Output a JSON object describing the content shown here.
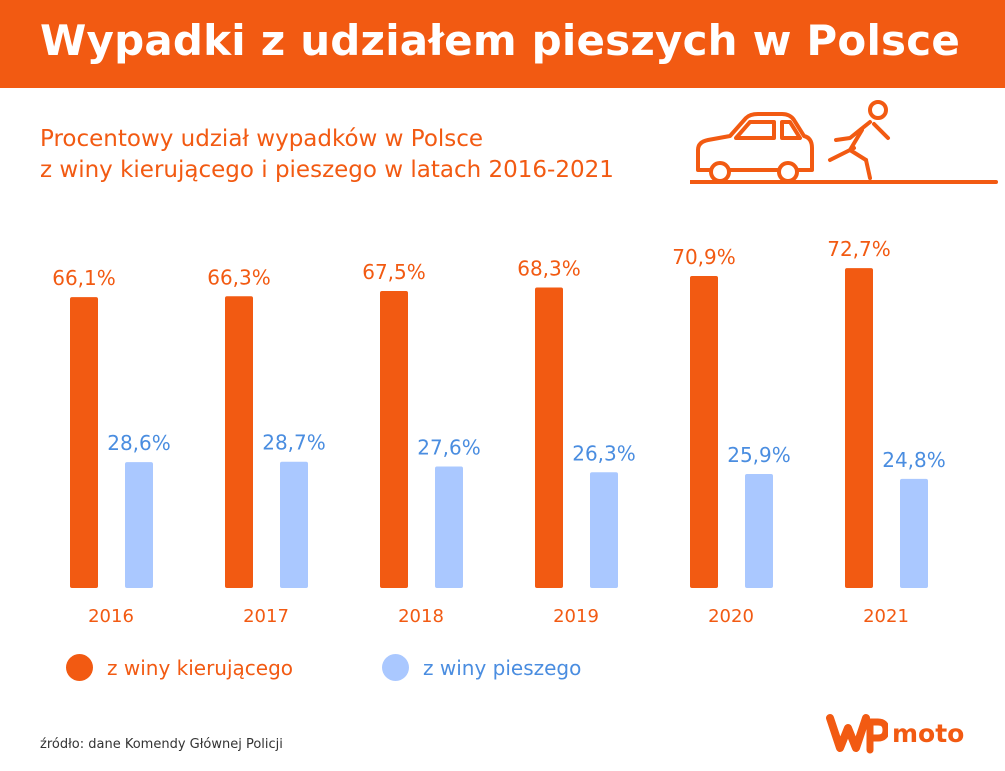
{
  "header": {
    "title": "Wypadki z udziałem pieszych w Polsce"
  },
  "subtitle": {
    "line1": "Procentowy udział wypadków w Polsce",
    "line2": "z winy kierującego i pieszego w latach 2016-2021"
  },
  "colors": {
    "brand": "#f25a12",
    "driver": "#f25a12",
    "pedestrian": "#aac8ff",
    "pedestrian_text": "#4a8de0"
  },
  "chart_data": {
    "type": "bar",
    "title": "Procentowy udział wypadków w Polsce z winy kierującego i pieszego w latach 2016-2021",
    "categories": [
      "2016",
      "2017",
      "2018",
      "2019",
      "2020",
      "2021"
    ],
    "series": [
      {
        "name": "z winy kierującego",
        "values": [
          66.1,
          66.3,
          67.5,
          68.3,
          70.9,
          72.7
        ],
        "labels": [
          "66,1%",
          "66,3%",
          "67,5%",
          "68,3%",
          "70,9%",
          "72,7%"
        ]
      },
      {
        "name": "z winy pieszego",
        "values": [
          28.6,
          28.7,
          27.6,
          26.3,
          25.9,
          24.8
        ],
        "labels": [
          "28,6%",
          "28,7%",
          "27,6%",
          "26,3%",
          "25,9%",
          "24,8%"
        ]
      }
    ],
    "xlabel": "",
    "ylabel": "",
    "ylim": [
      0,
      100
    ],
    "grid": false,
    "legend": "bottom"
  },
  "legend": {
    "driver": "z winy kierującego",
    "pedestrian": "z winy pieszego"
  },
  "footer": {
    "source": "źródło: dane Komendy Głównej Policji",
    "logo_text": "moto"
  }
}
